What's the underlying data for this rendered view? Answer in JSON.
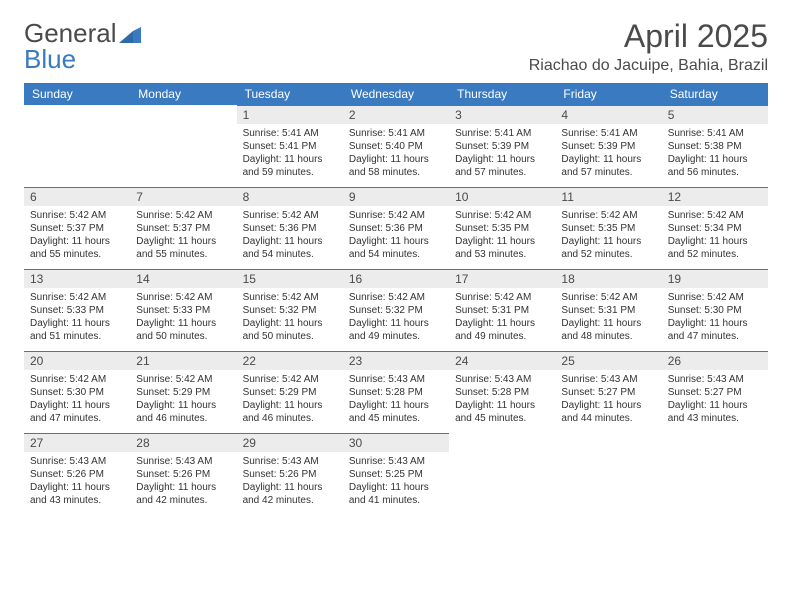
{
  "logo": {
    "word1": "General",
    "word2": "Blue"
  },
  "title": "April 2025",
  "location": "Riachao do Jacuipe, Bahia, Brazil",
  "colors": {
    "header_bg": "#3a7ac0",
    "header_text": "#ffffff",
    "daynum_bg": "#ececec",
    "daynum_border": "#3a7ac0",
    "body_text": "#333333",
    "title_text": "#4a4a4a",
    "page_bg": "#ffffff"
  },
  "fonts": {
    "title_size_pt": 24,
    "location_size_pt": 12,
    "header_size_pt": 9,
    "daynum_size_pt": 9,
    "body_size_pt": 7.5
  },
  "weekdays": [
    "Sunday",
    "Monday",
    "Tuesday",
    "Wednesday",
    "Thursday",
    "Friday",
    "Saturday"
  ],
  "grid": {
    "rows": 5,
    "cols": 7,
    "first_day_col": 2
  },
  "days": [
    {
      "n": 1,
      "sunrise": "5:41 AM",
      "sunset": "5:41 PM",
      "daylight": "11 hours and 59 minutes."
    },
    {
      "n": 2,
      "sunrise": "5:41 AM",
      "sunset": "5:40 PM",
      "daylight": "11 hours and 58 minutes."
    },
    {
      "n": 3,
      "sunrise": "5:41 AM",
      "sunset": "5:39 PM",
      "daylight": "11 hours and 57 minutes."
    },
    {
      "n": 4,
      "sunrise": "5:41 AM",
      "sunset": "5:39 PM",
      "daylight": "11 hours and 57 minutes."
    },
    {
      "n": 5,
      "sunrise": "5:41 AM",
      "sunset": "5:38 PM",
      "daylight": "11 hours and 56 minutes."
    },
    {
      "n": 6,
      "sunrise": "5:42 AM",
      "sunset": "5:37 PM",
      "daylight": "11 hours and 55 minutes."
    },
    {
      "n": 7,
      "sunrise": "5:42 AM",
      "sunset": "5:37 PM",
      "daylight": "11 hours and 55 minutes."
    },
    {
      "n": 8,
      "sunrise": "5:42 AM",
      "sunset": "5:36 PM",
      "daylight": "11 hours and 54 minutes."
    },
    {
      "n": 9,
      "sunrise": "5:42 AM",
      "sunset": "5:36 PM",
      "daylight": "11 hours and 54 minutes."
    },
    {
      "n": 10,
      "sunrise": "5:42 AM",
      "sunset": "5:35 PM",
      "daylight": "11 hours and 53 minutes."
    },
    {
      "n": 11,
      "sunrise": "5:42 AM",
      "sunset": "5:35 PM",
      "daylight": "11 hours and 52 minutes."
    },
    {
      "n": 12,
      "sunrise": "5:42 AM",
      "sunset": "5:34 PM",
      "daylight": "11 hours and 52 minutes."
    },
    {
      "n": 13,
      "sunrise": "5:42 AM",
      "sunset": "5:33 PM",
      "daylight": "11 hours and 51 minutes."
    },
    {
      "n": 14,
      "sunrise": "5:42 AM",
      "sunset": "5:33 PM",
      "daylight": "11 hours and 50 minutes."
    },
    {
      "n": 15,
      "sunrise": "5:42 AM",
      "sunset": "5:32 PM",
      "daylight": "11 hours and 50 minutes."
    },
    {
      "n": 16,
      "sunrise": "5:42 AM",
      "sunset": "5:32 PM",
      "daylight": "11 hours and 49 minutes."
    },
    {
      "n": 17,
      "sunrise": "5:42 AM",
      "sunset": "5:31 PM",
      "daylight": "11 hours and 49 minutes."
    },
    {
      "n": 18,
      "sunrise": "5:42 AM",
      "sunset": "5:31 PM",
      "daylight": "11 hours and 48 minutes."
    },
    {
      "n": 19,
      "sunrise": "5:42 AM",
      "sunset": "5:30 PM",
      "daylight": "11 hours and 47 minutes."
    },
    {
      "n": 20,
      "sunrise": "5:42 AM",
      "sunset": "5:30 PM",
      "daylight": "11 hours and 47 minutes."
    },
    {
      "n": 21,
      "sunrise": "5:42 AM",
      "sunset": "5:29 PM",
      "daylight": "11 hours and 46 minutes."
    },
    {
      "n": 22,
      "sunrise": "5:42 AM",
      "sunset": "5:29 PM",
      "daylight": "11 hours and 46 minutes."
    },
    {
      "n": 23,
      "sunrise": "5:43 AM",
      "sunset": "5:28 PM",
      "daylight": "11 hours and 45 minutes."
    },
    {
      "n": 24,
      "sunrise": "5:43 AM",
      "sunset": "5:28 PM",
      "daylight": "11 hours and 45 minutes."
    },
    {
      "n": 25,
      "sunrise": "5:43 AM",
      "sunset": "5:27 PM",
      "daylight": "11 hours and 44 minutes."
    },
    {
      "n": 26,
      "sunrise": "5:43 AM",
      "sunset": "5:27 PM",
      "daylight": "11 hours and 43 minutes."
    },
    {
      "n": 27,
      "sunrise": "5:43 AM",
      "sunset": "5:26 PM",
      "daylight": "11 hours and 43 minutes."
    },
    {
      "n": 28,
      "sunrise": "5:43 AM",
      "sunset": "5:26 PM",
      "daylight": "11 hours and 42 minutes."
    },
    {
      "n": 29,
      "sunrise": "5:43 AM",
      "sunset": "5:26 PM",
      "daylight": "11 hours and 42 minutes."
    },
    {
      "n": 30,
      "sunrise": "5:43 AM",
      "sunset": "5:25 PM",
      "daylight": "11 hours and 41 minutes."
    }
  ],
  "labels": {
    "sunrise": "Sunrise:",
    "sunset": "Sunset:",
    "daylight": "Daylight:"
  }
}
